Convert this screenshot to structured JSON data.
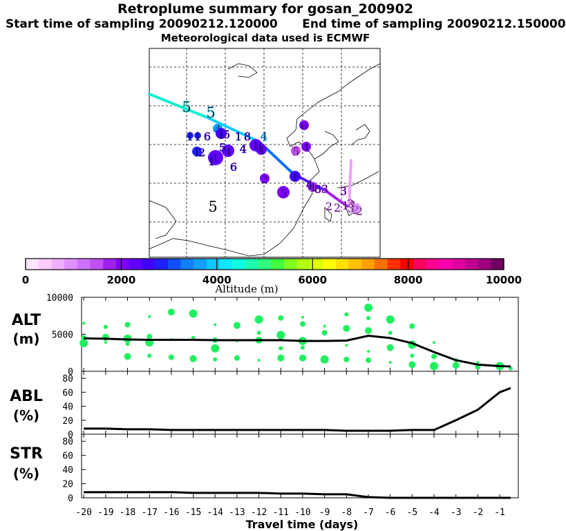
{
  "title": "Retroplume summary for gosan_200902",
  "subtitle_start_label": "Start time of sampling",
  "subtitle_start": "20090212.120000",
  "subtitle_end_label": "End time of sampling",
  "subtitle_end": "20090212.150000",
  "subtitle2": "Meteorological data used is ECMWF",
  "colorbar": {
    "label": "Altitude (m)",
    "ticks": [
      "0",
      "2000",
      "4000",
      "6000",
      "8000",
      "10000"
    ],
    "colors": [
      "#ffe6ff",
      "#ffccff",
      "#f0b0ff",
      "#e090ff",
      "#d070ff",
      "#c050f0",
      "#a020f0",
      "#8000ff",
      "#6000ff",
      "#4000ff",
      "#2020ff",
      "#1050ff",
      "#1080ff",
      "#10a0ff",
      "#10c8ff",
      "#10e8ff",
      "#10ffe0",
      "#20ffb0",
      "#30ff80",
      "#40ff40",
      "#80ff20",
      "#b0ff10",
      "#e0ff00",
      "#ffff00",
      "#ffe000",
      "#ffc000",
      "#ffa000",
      "#ff7000",
      "#ff3000",
      "#ff0000",
      "#ff0060",
      "#ff0090",
      "#ff00b0",
      "#e000a0",
      "#c00090",
      "#a00080",
      "#700060"
    ]
  },
  "panels": [
    {
      "label_top": "ALT",
      "label_bottom": "(m)"
    },
    {
      "label_top": "ABL",
      "label_bottom": "(%)"
    },
    {
      "label_top": "STR",
      "label_bottom": "(%)"
    }
  ],
  "chart_data": [
    {
      "type": "line",
      "name": "ALT",
      "ylabel": "ALT (m)",
      "ylim": [
        0,
        10000
      ],
      "yticks": [
        "0",
        "5000",
        "10000"
      ],
      "x": [
        -20,
        -19,
        -18,
        -17,
        -16,
        -15,
        -14,
        -13,
        -12,
        -11,
        -10,
        -9,
        -8,
        -7,
        -6,
        -5,
        -4,
        -3,
        -2,
        -1,
        -0.5
      ],
      "values": [
        4450,
        4400,
        4300,
        4250,
        4250,
        4250,
        4200,
        4200,
        4200,
        4200,
        4100,
        4100,
        4150,
        4800,
        4500,
        3800,
        2600,
        1500,
        900,
        700,
        650
      ],
      "clusters": [
        {
          "x": -20,
          "y": 6500
        },
        {
          "x": -20,
          "y": 4500
        },
        {
          "x": -20,
          "y": 3800
        },
        {
          "x": -19,
          "y": 6000
        },
        {
          "x": -19,
          "y": 4600
        },
        {
          "x": -19,
          "y": 3900
        },
        {
          "x": -18,
          "y": 6300
        },
        {
          "x": -18,
          "y": 4400
        },
        {
          "x": -18,
          "y": 3700
        },
        {
          "x": -18,
          "y": 2000
        },
        {
          "x": -17,
          "y": 7400
        },
        {
          "x": -17,
          "y": 4700
        },
        {
          "x": -17,
          "y": 3900
        },
        {
          "x": -17,
          "y": 2100
        },
        {
          "x": -16,
          "y": 8000
        },
        {
          "x": -16,
          "y": 4300
        },
        {
          "x": -16,
          "y": 1900
        },
        {
          "x": -15,
          "y": 7800
        },
        {
          "x": -15,
          "y": 4500
        },
        {
          "x": -15,
          "y": 1700
        },
        {
          "x": -14,
          "y": 6300
        },
        {
          "x": -14,
          "y": 4200
        },
        {
          "x": -14,
          "y": 3100
        },
        {
          "x": -14,
          "y": 1600
        },
        {
          "x": -13,
          "y": 6200
        },
        {
          "x": -13,
          "y": 4100
        },
        {
          "x": -13,
          "y": 1800
        },
        {
          "x": -12,
          "y": 7000
        },
        {
          "x": -12,
          "y": 5200
        },
        {
          "x": -12,
          "y": 4200
        },
        {
          "x": -12,
          "y": 1500
        },
        {
          "x": -11,
          "y": 7200
        },
        {
          "x": -11,
          "y": 4900
        },
        {
          "x": -11,
          "y": 3100
        },
        {
          "x": -11,
          "y": 1800
        },
        {
          "x": -10,
          "y": 7300
        },
        {
          "x": -10,
          "y": 6400
        },
        {
          "x": -10,
          "y": 4100
        },
        {
          "x": -10,
          "y": 3200
        },
        {
          "x": -10,
          "y": 1800
        },
        {
          "x": -9,
          "y": 6100
        },
        {
          "x": -9,
          "y": 5200
        },
        {
          "x": -9,
          "y": 1600
        },
        {
          "x": -8,
          "y": 7700
        },
        {
          "x": -8,
          "y": 5800
        },
        {
          "x": -8,
          "y": 3500
        },
        {
          "x": -8,
          "y": 1600
        },
        {
          "x": -7,
          "y": 8600
        },
        {
          "x": -7,
          "y": 7200
        },
        {
          "x": -7,
          "y": 5500
        },
        {
          "x": -7,
          "y": 2700
        },
        {
          "x": -7,
          "y": 1500
        },
        {
          "x": -6,
          "y": 7000
        },
        {
          "x": -6,
          "y": 5200
        },
        {
          "x": -6,
          "y": 3200
        },
        {
          "x": -6,
          "y": 1200
        },
        {
          "x": -5,
          "y": 6100
        },
        {
          "x": -5,
          "y": 3600
        },
        {
          "x": -5,
          "y": 2100
        },
        {
          "x": -5,
          "y": 900
        },
        {
          "x": -4,
          "y": 3900
        },
        {
          "x": -4,
          "y": 2000
        },
        {
          "x": -4,
          "y": 700
        },
        {
          "x": -3,
          "y": 1500
        },
        {
          "x": -3,
          "y": 800
        },
        {
          "x": -2,
          "y": 1200
        },
        {
          "x": -2,
          "y": 600
        },
        {
          "x": -1,
          "y": 700
        },
        {
          "x": -0.5,
          "y": 400
        }
      ]
    },
    {
      "type": "line",
      "name": "ABL",
      "ylabel": "ABL (%)",
      "ylim": [
        0,
        90
      ],
      "yticks": [
        "0",
        "20",
        "40",
        "60",
        "80"
      ],
      "x": [
        -20,
        -19,
        -18,
        -17,
        -16,
        -15,
        -14,
        -13,
        -12,
        -11,
        -10,
        -9,
        -8,
        -7,
        -6,
        -5,
        -4,
        -3,
        -2,
        -1,
        -0.5
      ],
      "values": [
        8,
        8,
        7,
        7,
        6,
        6,
        6,
        6,
        6,
        6,
        6,
        6,
        5,
        5,
        5,
        6,
        6,
        20,
        35,
        60,
        66
      ]
    },
    {
      "type": "line",
      "name": "STR",
      "ylabel": "STR (%)",
      "ylim": [
        0,
        90
      ],
      "yticks": [
        "0",
        "20",
        "40",
        "60",
        "80"
      ],
      "xlabel": "Travel time (days)",
      "xticks": [
        "-20",
        "-19",
        "-18",
        "-17",
        "-16",
        "-15",
        "-14",
        "-13",
        "-12",
        "-11",
        "-10",
        "-9",
        "-8",
        "-7",
        "-6",
        "-5",
        "-4",
        "-3",
        "-2",
        "-1"
      ],
      "x": [
        -20,
        -19,
        -18,
        -17,
        -16,
        -15,
        -14,
        -13,
        -12,
        -11,
        -10,
        -9,
        -8,
        -7,
        -6,
        -5,
        -4,
        -3,
        -2,
        -1,
        -0.5
      ],
      "values": [
        8,
        8,
        8,
        8,
        8,
        7,
        7,
        7,
        7,
        6,
        6,
        5,
        5,
        1,
        0,
        0,
        0,
        0,
        0,
        0,
        0
      ]
    }
  ],
  "map": {
    "labels": [
      "5",
      "5",
      "4",
      "6",
      "5",
      "4",
      "1",
      "1",
      "6",
      "1",
      "5",
      "1",
      "8",
      "4",
      "4",
      "1",
      "1",
      "2",
      "1",
      "4",
      "4",
      "1",
      "6",
      "2",
      "1",
      "5",
      "4",
      "4",
      "8",
      "3",
      "3",
      "5",
      "3",
      "2",
      "1",
      "1",
      "2",
      "2",
      "2",
      "3",
      "4",
      "5"
    ]
  }
}
